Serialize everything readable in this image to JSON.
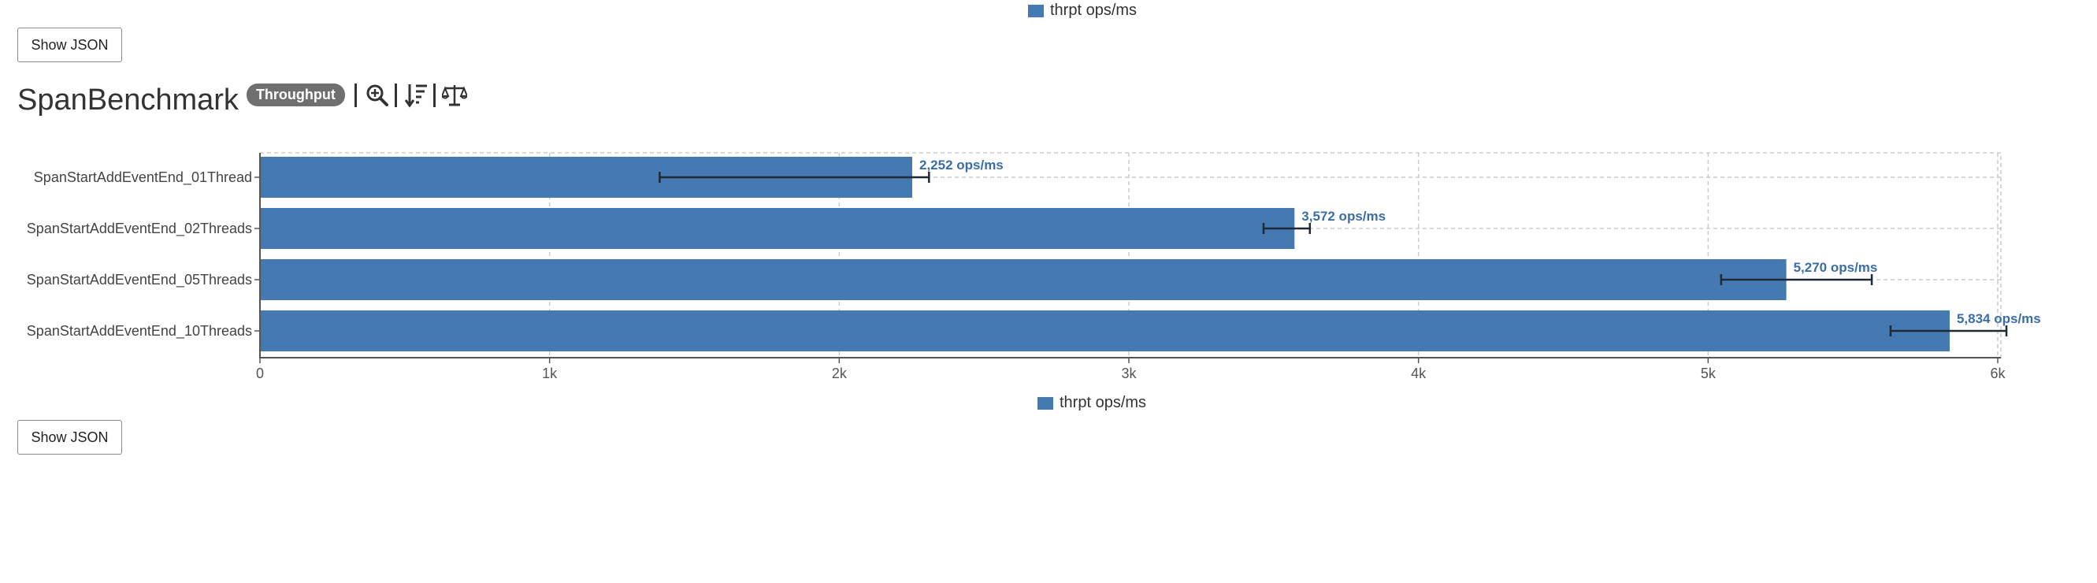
{
  "legend": {
    "label": "thrpt ops/ms",
    "color": "#4579b2"
  },
  "buttons": {
    "show_json": "Show JSON"
  },
  "header": {
    "title": "SpanBenchmark",
    "badge": "Throughput"
  },
  "toolbar": {
    "icons": [
      "zoom-in-icon",
      "sort-descending-icon",
      "balance-scale-icon"
    ]
  },
  "chart_data": {
    "type": "bar",
    "orientation": "horizontal",
    "categories": [
      "SpanStartAddEventEnd_01Thread",
      "SpanStartAddEventEnd_02Threads",
      "SpanStartAddEventEnd_05Threads",
      "SpanStartAddEventEnd_10Threads"
    ],
    "series": [
      {
        "name": "thrpt ops/ms",
        "values": [
          2252,
          3572,
          5270,
          5834
        ],
        "error_low": [
          1380,
          3465,
          5045,
          5630
        ],
        "error_high": [
          2310,
          3625,
          5565,
          6030
        ],
        "value_labels": [
          "2,252 ops/ms",
          "3,572 ops/ms",
          "5,270 ops/ms",
          "5,834 ops/ms"
        ]
      }
    ],
    "xlim": [
      0,
      6000
    ],
    "x_ticks": [
      0,
      1000,
      2000,
      3000,
      4000,
      5000,
      6000
    ],
    "x_tick_labels": [
      "0",
      "1k",
      "2k",
      "3k",
      "4k",
      "5k",
      "6k"
    ],
    "grid": true,
    "legend_position": "top and bottom center"
  }
}
